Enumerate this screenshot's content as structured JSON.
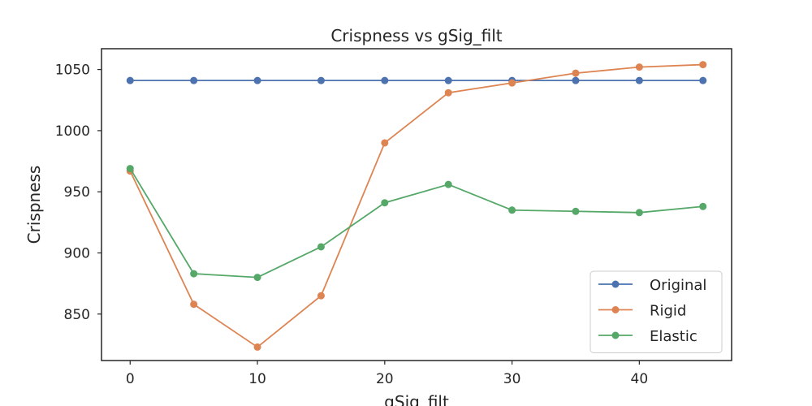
{
  "chart_data": {
    "type": "line",
    "title": "Crispness vs gSig_filt",
    "xlabel": "gSig_filt",
    "ylabel": "Crispness",
    "x": [
      0,
      5,
      10,
      15,
      20,
      25,
      30,
      35,
      40,
      45
    ],
    "xlim": [
      -2.25,
      47.25
    ],
    "ylim": [
      812,
      1067
    ],
    "xticks": [
      0,
      10,
      20,
      30,
      40
    ],
    "yticks": [
      850,
      900,
      950,
      1000,
      1050
    ],
    "grid": false,
    "legend_position": "lower-right",
    "series": [
      {
        "name": "Original",
        "color": "#4c72b0",
        "values": [
          1041,
          1041,
          1041,
          1041,
          1041,
          1041,
          1041,
          1041,
          1041,
          1041
        ]
      },
      {
        "name": "Rigid",
        "color": "#dd8452",
        "values": [
          967,
          858,
          823,
          865,
          990,
          1031,
          1039,
          1047,
          1052,
          1054
        ]
      },
      {
        "name": "Elastic",
        "color": "#55a868",
        "values": [
          969,
          883,
          880,
          905,
          941,
          956,
          935,
          934,
          933,
          938
        ]
      }
    ]
  }
}
